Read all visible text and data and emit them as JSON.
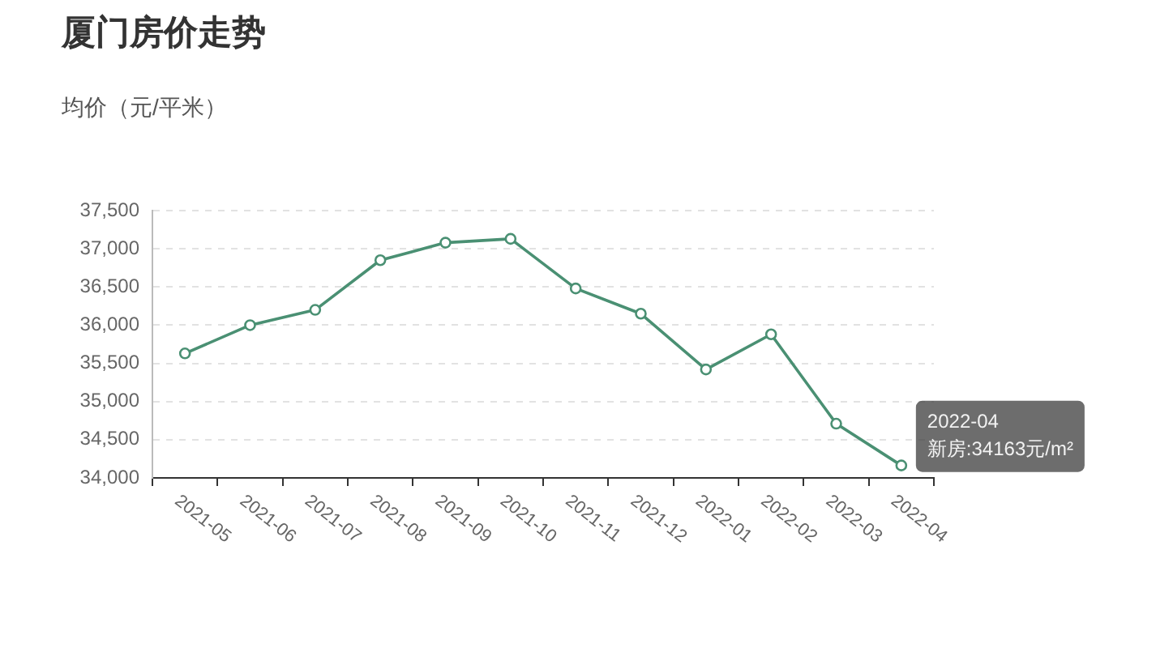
{
  "chart_data": {
    "type": "line",
    "title": "厦门房价走势",
    "ylabel": "均价（元/平米）",
    "categories": [
      "2021-05",
      "2021-06",
      "2021-07",
      "2021-08",
      "2021-09",
      "2021-10",
      "2021-11",
      "2021-12",
      "2022-01",
      "2022-02",
      "2022-03",
      "2022-04"
    ],
    "values": [
      35630,
      36000,
      36200,
      36850,
      37080,
      37130,
      36480,
      36150,
      35420,
      35880,
      34710,
      34163
    ],
    "color": "#4a9073",
    "marker": "circle",
    "grid": "y",
    "ylim": [
      34000,
      37500
    ],
    "yticks": [
      {
        "value": 34000,
        "label": "34,000"
      },
      {
        "value": 34500,
        "label": "34,500"
      },
      {
        "value": 35000,
        "label": "35,000"
      },
      {
        "value": 35500,
        "label": "35,500"
      },
      {
        "value": 36000,
        "label": "36,000"
      },
      {
        "value": 36500,
        "label": "36,500"
      },
      {
        "value": 37000,
        "label": "37,000"
      },
      {
        "value": 37500,
        "label": "37,500"
      }
    ],
    "annotations": [
      {
        "text": "2022-04\n新房:34163元/m²",
        "x": "2022-04",
        "y": 34163
      }
    ]
  }
}
